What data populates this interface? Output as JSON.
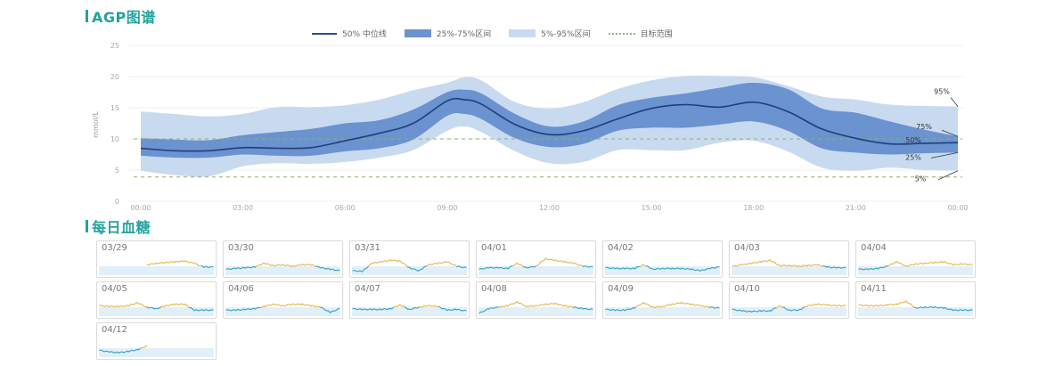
{
  "agp": {
    "title": "AGP图谱",
    "legend": {
      "median": "50% 中位线",
      "iqr": "25%-75%区间",
      "range": "5%-95%区间",
      "target": "目标范围"
    },
    "end_labels": {
      "p95": "95%",
      "p75": "75%",
      "p50": "50%",
      "p25": "25%",
      "p5": "5%"
    }
  },
  "chart_data": {
    "type": "area",
    "ylabel": "mmol/L",
    "ylim": [
      0,
      25
    ],
    "yticks": [
      "0",
      "5",
      "10",
      "15",
      "20",
      "25"
    ],
    "xticks": [
      "00:00",
      "03:00",
      "06:00",
      "09:00",
      "12:00",
      "15:00",
      "18:00",
      "21:00",
      "00:00"
    ],
    "grid": true,
    "legend_position": "top",
    "target_range": [
      3.9,
      10
    ],
    "x_hours": [
      0,
      1,
      2,
      3,
      4,
      5,
      6,
      7,
      8,
      9,
      9.5,
      10,
      11,
      12,
      13,
      14,
      15,
      16,
      17,
      18,
      19,
      20,
      21,
      22,
      23,
      24
    ],
    "series": [
      {
        "name": "95%",
        "values": [
          14.4,
          14,
          13.6,
          14,
          15.1,
          15.1,
          15.4,
          16.3,
          17.8,
          19,
          19.9,
          19.4,
          15.9,
          14.9,
          15.9,
          18,
          19.4,
          20.1,
          20.1,
          19.9,
          18.5,
          16.8,
          16.3,
          15.5,
          15.3,
          15.2
        ]
      },
      {
        "name": "75%",
        "values": [
          10.1,
          9.9,
          9.8,
          10.6,
          11.1,
          11.6,
          12.5,
          13,
          14.7,
          17.5,
          17.9,
          17.3,
          14,
          12,
          12.8,
          15.4,
          16.6,
          17.3,
          18.2,
          19,
          18,
          14.9,
          14.2,
          12.8,
          11.5,
          10.4
        ]
      },
      {
        "name": "50%",
        "values": [
          8.5,
          8.1,
          8.1,
          8.6,
          8.5,
          8.6,
          9.7,
          10.9,
          12.5,
          16.1,
          16.3,
          15.6,
          12.3,
          10.7,
          11.3,
          13.2,
          14.9,
          15.5,
          15.1,
          15.9,
          14.4,
          11.6,
          10.1,
          9.2,
          9.3,
          9.4
        ]
      },
      {
        "name": "25%",
        "values": [
          7.3,
          7,
          7,
          7.5,
          7.3,
          7.3,
          8,
          8.5,
          9.9,
          13.7,
          14,
          13.2,
          10.1,
          8.7,
          9.2,
          11.3,
          11.8,
          11.8,
          12.3,
          12.8,
          11.3,
          8.5,
          7.8,
          7.5,
          7.7,
          7.8
        ]
      },
      {
        "name": "5%",
        "values": [
          4.9,
          4.2,
          4,
          5.6,
          6.1,
          6,
          6.3,
          7,
          8.2,
          11.3,
          12,
          11.1,
          8,
          6.1,
          6.3,
          8.2,
          8.2,
          8.2,
          9.4,
          9.7,
          8,
          5.4,
          4.9,
          5.4,
          5,
          4.9
        ]
      }
    ],
    "colors": {
      "median": "#1f3f7a",
      "iqr": "#6a93d0",
      "range": "#c8daf0",
      "target": "#8cb06c",
      "grid": "#efefef"
    }
  },
  "daily": {
    "title": "每日血糖",
    "colors": {
      "high": "#e6b84c",
      "in_range": "#3aa3cc",
      "band": "#e1f0f8"
    },
    "days": [
      {
        "date": "03/29",
        "values": [
          null,
          null,
          null,
          null,
          null,
          11,
          12,
          12.5,
          13,
          13.5,
          12,
          9.5,
          9.5
        ]
      },
      {
        "date": "03/30",
        "values": [
          8,
          8.5,
          9,
          9.5,
          12,
          10.5,
          11,
          10,
          11,
          11,
          9,
          8,
          7
        ]
      },
      {
        "date": "03/31",
        "values": [
          7,
          6.5,
          12,
          13,
          14,
          13.5,
          9,
          7,
          11,
          12,
          13,
          10,
          9
        ]
      },
      {
        "date": "04/01",
        "values": [
          8,
          9,
          9,
          8.5,
          12,
          9,
          10,
          15,
          14,
          13,
          12,
          10,
          9.5
        ]
      },
      {
        "date": "04/02",
        "values": [
          9,
          8.5,
          8.5,
          8.5,
          11,
          8,
          8.5,
          8.5,
          8.5,
          8,
          7,
          8.5,
          9.5
        ]
      },
      {
        "date": "04/03",
        "values": [
          10,
          11,
          12,
          13,
          14,
          10.5,
          10.5,
          10,
          10.5,
          11,
          9.5,
          9,
          9
        ]
      },
      {
        "date": "04/04",
        "values": [
          8,
          8,
          8.5,
          10,
          13,
          10,
          11.5,
          12,
          12.5,
          13,
          11,
          11.5,
          11
        ]
      },
      {
        "date": "04/05",
        "values": [
          11,
          10.5,
          10.5,
          11,
          13,
          10,
          9,
          11,
          12,
          12,
          8,
          8,
          8
        ]
      },
      {
        "date": "04/06",
        "values": [
          8,
          8,
          8.5,
          9,
          10.5,
          12,
          11,
          12,
          12,
          11,
          10,
          6.5,
          9
        ]
      },
      {
        "date": "04/07",
        "values": [
          9,
          8.5,
          8.5,
          8.5,
          9,
          11.5,
          8.5,
          10,
          11,
          10.5,
          8,
          8.5,
          7.5
        ]
      },
      {
        "date": "04/08",
        "values": [
          6,
          9,
          10,
          11,
          13.5,
          10.5,
          11,
          12,
          12.5,
          11,
          10,
          9,
          8.5
        ]
      },
      {
        "date": "04/09",
        "values": [
          8.5,
          8,
          8,
          9.5,
          13,
          10,
          10.5,
          12,
          13,
          12,
          11,
          10,
          9.5
        ]
      },
      {
        "date": "04/10",
        "values": [
          8.5,
          7.5,
          7,
          7.5,
          7.5,
          11,
          8,
          8,
          11,
          12,
          11.5,
          11,
          11
        ]
      },
      {
        "date": "04/11",
        "values": [
          11.5,
          11,
          11,
          11.5,
          12,
          14,
          9.5,
          10,
          10,
          9.5,
          8,
          8,
          8
        ]
      },
      {
        "date": "04/12",
        "values": [
          8.5,
          7.5,
          7,
          7.8,
          9,
          11.5,
          null,
          null,
          null,
          null,
          null,
          null,
          null
        ]
      }
    ]
  }
}
